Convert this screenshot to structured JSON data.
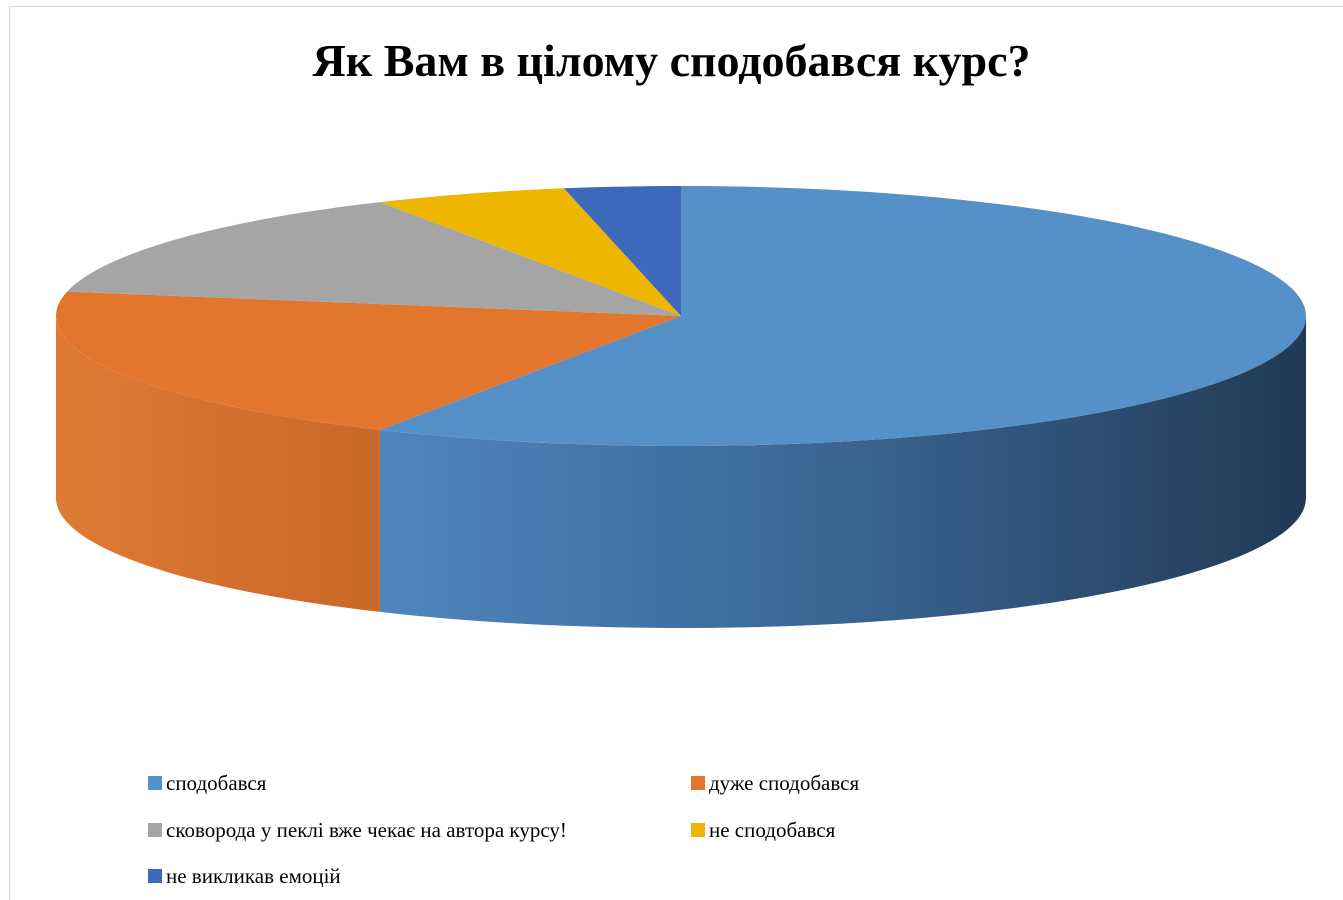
{
  "chart_data": {
    "type": "pie",
    "title": "Як Вам в цілому сподобався курс?",
    "series": [
      {
        "label": "сподобався",
        "value": 58,
        "color": "#5591c8"
      },
      {
        "label": "дуже сподобався",
        "value": 20,
        "color": "#e1762c"
      },
      {
        "label": "сковорода у пеклі вже чекає на автора курсу!",
        "value": 14,
        "color": "#a5a5a5"
      },
      {
        "label": "не сподобався",
        "value": 5,
        "color": "#efb600"
      },
      {
        "label": "не викликав емоцій",
        "value": 3,
        "color": "#3e68b9"
      }
    ],
    "legend_position": "bottom",
    "style": "3d-pie"
  }
}
